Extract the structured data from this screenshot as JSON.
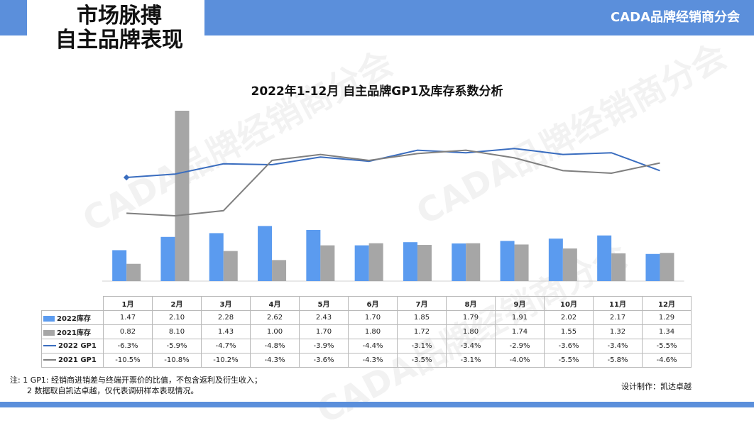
{
  "header": {
    "title_line1": "市场脉搏",
    "title_line2": "自主品牌表现",
    "brand": "CADA品牌经销商分会"
  },
  "colors": {
    "accent": "#5b8fdb",
    "series_2022_stock": "#5b9bef",
    "series_2021_stock": "#a6a6a6",
    "series_2022_gp1": "#3a6dbf",
    "series_2021_gp1": "#7f7f7f"
  },
  "chart_data": {
    "type": "bar",
    "title": "2022年1-12月 自主品牌GP1及库存系数分析",
    "categories": [
      "1月",
      "2月",
      "3月",
      "4月",
      "5月",
      "6月",
      "7月",
      "8月",
      "9月",
      "10月",
      "11月",
      "12月"
    ],
    "series": [
      {
        "name": "2022库存",
        "kind": "bar",
        "values": [
          1.47,
          2.1,
          2.28,
          2.62,
          2.43,
          1.7,
          1.85,
          1.79,
          1.91,
          2.02,
          2.17,
          1.29
        ],
        "labels": [
          "1.47",
          "2.10",
          "2.28",
          "2.62",
          "2.43",
          "1.70",
          "1.85",
          "1.79",
          "1.91",
          "2.02",
          "2.17",
          "1.29"
        ]
      },
      {
        "name": "2021库存",
        "kind": "bar",
        "values": [
          0.82,
          8.1,
          1.43,
          1.0,
          1.7,
          1.8,
          1.72,
          1.8,
          1.74,
          1.55,
          1.32,
          1.34
        ],
        "labels": [
          "0.82",
          "8.10",
          "1.43",
          "1.00",
          "1.70",
          "1.80",
          "1.72",
          "1.80",
          "1.74",
          "1.55",
          "1.32",
          "1.34"
        ]
      },
      {
        "name": "2022 GP1",
        "kind": "line",
        "values": [
          -6.3,
          -5.9,
          -4.7,
          -4.8,
          -3.9,
          -4.4,
          -3.1,
          -3.4,
          -2.9,
          -3.6,
          -3.4,
          -5.5
        ],
        "labels": [
          "-6.3%",
          "-5.9%",
          "-4.7%",
          "-4.8%",
          "-3.9%",
          "-4.4%",
          "-3.1%",
          "-3.4%",
          "-2.9%",
          "-3.6%",
          "-3.4%",
          "-5.5%"
        ]
      },
      {
        "name": "2021 GP1",
        "kind": "line",
        "values": [
          -10.5,
          -10.8,
          -10.2,
          -4.3,
          -3.6,
          -4.3,
          -3.5,
          -3.1,
          -4.0,
          -5.5,
          -5.8,
          -4.6
        ],
        "labels": [
          "-10.5%",
          "-10.8%",
          "-10.2%",
          "-4.3%",
          "-3.6%",
          "-4.3%",
          "-3.5%",
          "-3.1%",
          "-4.0%",
          "-5.5%",
          "-5.8%",
          "-4.6%"
        ]
      }
    ]
  },
  "notes": {
    "line1": "注: 1 GP1: 经销商进销差与终端开票价的比值，不包含返利及衍生收入；",
    "line2": "2 数据取自凯达卓越，仅代表调研样本表现情况。"
  },
  "credit": "设计制作：凯达卓越",
  "watermark": "CADA品牌经销商分会"
}
